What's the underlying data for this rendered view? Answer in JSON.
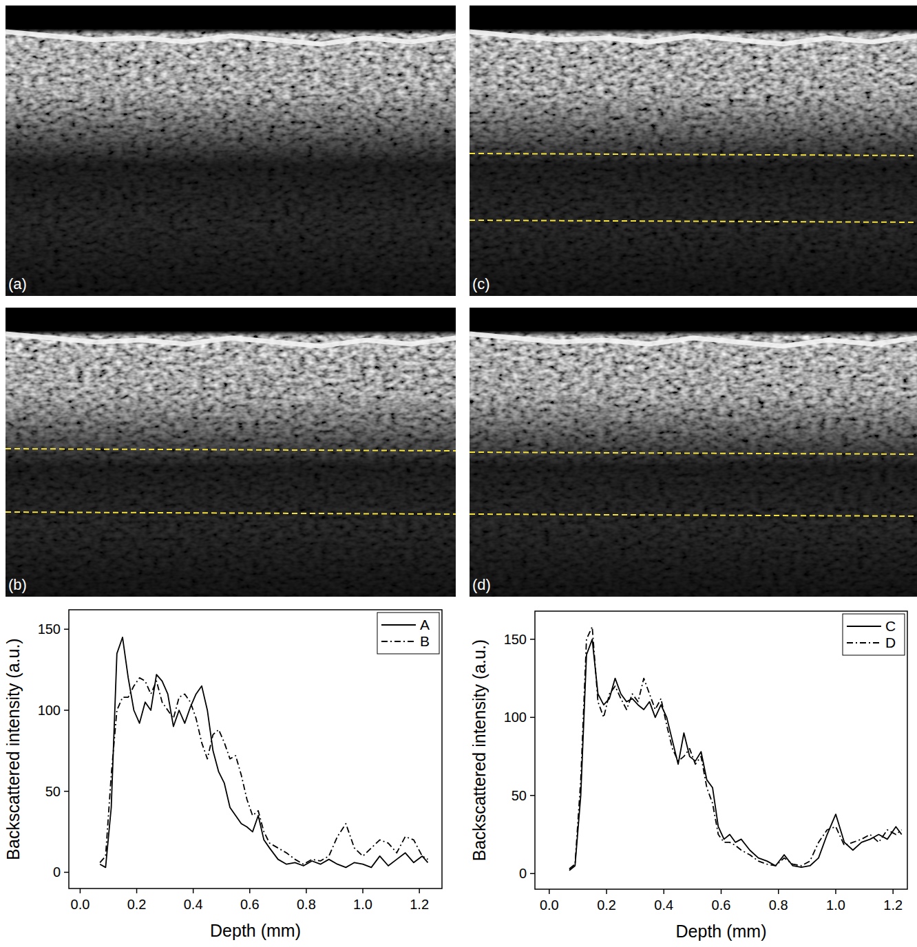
{
  "images": [
    {
      "label": "(a)"
    },
    {
      "label": "(b)"
    },
    {
      "label": "(c)"
    },
    {
      "label": "(d)"
    }
  ],
  "chart_data": [
    {
      "type": "line",
      "x_label": "Depth (mm)",
      "y_label": "Backscattered intensity (a.u.)",
      "xlim": [
        -0.04,
        1.28
      ],
      "ylim": [
        -10,
        162
      ],
      "xticks": [
        {
          "value": 0,
          "label": "0.0"
        },
        0.2,
        0.4,
        0.6,
        0.8,
        {
          "value": 1,
          "label": "1.0"
        },
        1.2
      ],
      "yticks": [
        0,
        50,
        100,
        150
      ],
      "legend": "top-right",
      "x": [
        0.07,
        0.09,
        0.11,
        0.13,
        0.15,
        0.17,
        0.19,
        0.21,
        0.23,
        0.25,
        0.27,
        0.29,
        0.31,
        0.33,
        0.35,
        0.37,
        0.39,
        0.41,
        0.43,
        0.45,
        0.47,
        0.49,
        0.51,
        0.53,
        0.55,
        0.57,
        0.59,
        0.61,
        0.63,
        0.65,
        0.67,
        0.7,
        0.73,
        0.76,
        0.79,
        0.82,
        0.85,
        0.88,
        0.91,
        0.94,
        0.97,
        1.0,
        1.03,
        1.06,
        1.09,
        1.12,
        1.15,
        1.18,
        1.21,
        1.23
      ],
      "series": [
        {
          "name": "A",
          "color": "#000000",
          "line_style": "solid",
          "values": [
            5,
            3,
            40,
            135,
            145,
            120,
            100,
            92,
            105,
            100,
            122,
            118,
            110,
            90,
            100,
            92,
            102,
            110,
            115,
            100,
            75,
            62,
            55,
            40,
            35,
            30,
            28,
            25,
            35,
            20,
            15,
            8,
            5,
            6,
            4,
            7,
            5,
            8,
            5,
            3,
            6,
            5,
            3,
            10,
            4,
            8,
            12,
            6,
            10,
            6
          ]
        },
        {
          "name": "B",
          "color": "#000000",
          "line_style": "dashdot",
          "values": [
            6,
            10,
            60,
            100,
            108,
            108,
            115,
            120,
            118,
            110,
            118,
            105,
            100,
            95,
            108,
            110,
            105,
            95,
            80,
            70,
            85,
            88,
            80,
            70,
            72,
            60,
            45,
            35,
            38,
            25,
            18,
            15,
            12,
            8,
            5,
            8,
            7,
            10,
            22,
            30,
            15,
            10,
            15,
            20,
            18,
            12,
            22,
            20,
            10,
            8
          ]
        }
      ]
    },
    {
      "type": "line",
      "x_label": "Depth (mm)",
      "y_label": "Backscattered intensity (a.u.)",
      "xlim": [
        -0.05,
        1.25
      ],
      "ylim": [
        -10,
        168
      ],
      "xticks": [
        {
          "value": 0,
          "label": "0.0"
        },
        0.2,
        0.4,
        0.6,
        0.8,
        {
          "value": 1,
          "label": "1.0"
        },
        1.2
      ],
      "yticks": [
        0,
        50,
        100,
        150
      ],
      "legend": "top-right",
      "x": [
        0.07,
        0.09,
        0.11,
        0.13,
        0.15,
        0.17,
        0.19,
        0.21,
        0.23,
        0.25,
        0.27,
        0.29,
        0.31,
        0.33,
        0.35,
        0.37,
        0.39,
        0.41,
        0.43,
        0.45,
        0.47,
        0.49,
        0.51,
        0.53,
        0.55,
        0.57,
        0.59,
        0.61,
        0.63,
        0.65,
        0.67,
        0.7,
        0.73,
        0.76,
        0.79,
        0.82,
        0.85,
        0.88,
        0.91,
        0.94,
        0.97,
        1.0,
        1.03,
        1.06,
        1.09,
        1.12,
        1.15,
        1.18,
        1.21,
        1.23
      ],
      "series": [
        {
          "name": "C",
          "color": "#000000",
          "line_style": "solid",
          "values": [
            2,
            5,
            50,
            140,
            150,
            115,
            108,
            112,
            125,
            115,
            110,
            112,
            108,
            105,
            110,
            100,
            108,
            100,
            85,
            70,
            90,
            75,
            72,
            78,
            60,
            55,
            30,
            22,
            25,
            20,
            22,
            15,
            10,
            8,
            5,
            12,
            5,
            4,
            5,
            10,
            25,
            38,
            20,
            15,
            20,
            22,
            25,
            22,
            30,
            25
          ]
        },
        {
          "name": "D",
          "color": "#000000",
          "line_style": "dashdot",
          "values": [
            3,
            6,
            60,
            150,
            158,
            110,
            100,
            115,
            120,
            112,
            105,
            115,
            110,
            125,
            115,
            105,
            112,
            95,
            80,
            72,
            75,
            80,
            70,
            75,
            55,
            45,
            25,
            20,
            20,
            18,
            15,
            12,
            8,
            6,
            5,
            10,
            6,
            5,
            8,
            20,
            28,
            30,
            18,
            20,
            22,
            25,
            20,
            28,
            25,
            28
          ]
        }
      ]
    }
  ]
}
